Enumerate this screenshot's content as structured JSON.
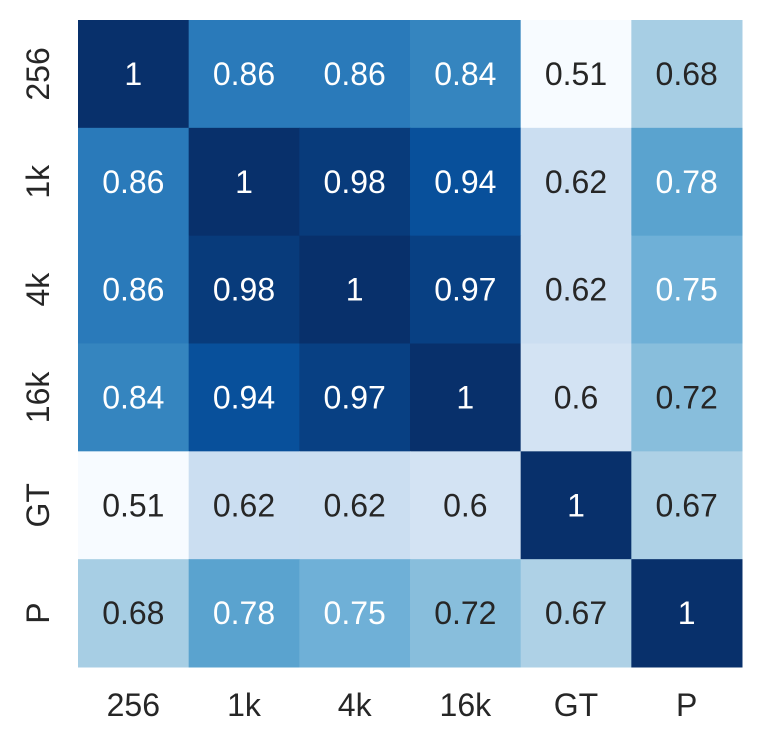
{
  "chart_data": {
    "type": "heatmap",
    "x_categories": [
      "256",
      "1k",
      "4k",
      "16k",
      "GT",
      "P"
    ],
    "y_categories": [
      "256",
      "1k",
      "4k",
      "16k",
      "GT",
      "P"
    ],
    "values": [
      [
        1,
        0.86,
        0.86,
        0.84,
        0.51,
        0.68
      ],
      [
        0.86,
        1,
        0.98,
        0.94,
        0.62,
        0.78
      ],
      [
        0.86,
        0.98,
        1,
        0.97,
        0.62,
        0.75
      ],
      [
        0.84,
        0.94,
        0.97,
        1,
        0.6,
        0.72
      ],
      [
        0.51,
        0.62,
        0.62,
        0.6,
        1,
        0.67
      ],
      [
        0.68,
        0.78,
        0.75,
        0.72,
        0.67,
        1
      ]
    ],
    "zlim": [
      0.51,
      1
    ],
    "colormap": [
      "#f7fbff",
      "#deebf7",
      "#c6dbef",
      "#9ecae1",
      "#6baed6",
      "#4292c6",
      "#2171b5",
      "#08519c",
      "#08306b"
    ]
  }
}
